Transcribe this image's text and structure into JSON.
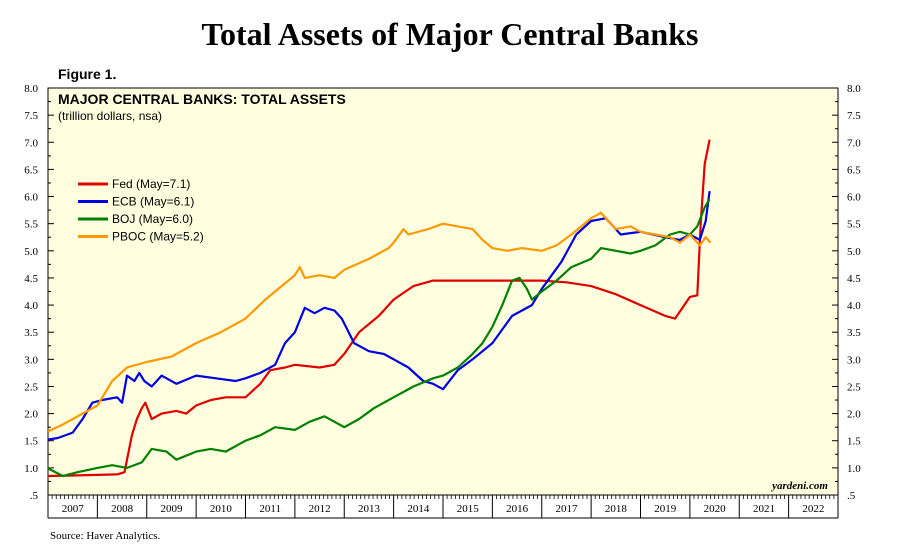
{
  "page": {
    "title": "Total Assets of Major Central Banks",
    "figure_label": "Figure 1.",
    "source": "Source: Haver Analytics."
  },
  "chart_data": {
    "type": "line",
    "title": "MAJOR CENTRAL BANKS: TOTAL ASSETS",
    "subtitle": "(trillion dollars, nsa)",
    "watermark": "yardeni.com",
    "xlabel": "",
    "ylabel": "",
    "xlim": [
      2007,
      2023
    ],
    "ylim": [
      0.5,
      8.0
    ],
    "y_ticks": [
      0.5,
      1.0,
      1.5,
      2.0,
      2.5,
      3.0,
      3.5,
      4.0,
      4.5,
      5.0,
      5.5,
      6.0,
      6.5,
      7.0,
      7.5,
      8.0
    ],
    "y_tick_labels": [
      ".5",
      "1.0",
      "1.5",
      "2.0",
      "2.5",
      "3.0",
      "3.5",
      "4.0",
      "4.5",
      "5.0",
      "5.5",
      "6.0",
      "6.5",
      "7.0",
      "7.5",
      "8.0"
    ],
    "x_tick_labels": [
      "2007",
      "2008",
      "2009",
      "2010",
      "2011",
      "2012",
      "2013",
      "2014",
      "2015",
      "2016",
      "2017",
      "2018",
      "2019",
      "2020",
      "2021",
      "2022"
    ],
    "plot_background": "#ffffe0",
    "grid": false,
    "legend_position": "left, upper-middle",
    "series": [
      {
        "name": "Fed (May=7.1)",
        "color": "#e00000",
        "points": [
          [
            2007.0,
            0.85
          ],
          [
            2007.5,
            0.86
          ],
          [
            2008.0,
            0.87
          ],
          [
            2008.4,
            0.88
          ],
          [
            2008.55,
            0.92
          ],
          [
            2008.7,
            1.6
          ],
          [
            2008.8,
            1.9
          ],
          [
            2008.9,
            2.1
          ],
          [
            2008.97,
            2.2
          ],
          [
            2009.1,
            1.9
          ],
          [
            2009.3,
            2.0
          ],
          [
            2009.6,
            2.05
          ],
          [
            2009.8,
            2.0
          ],
          [
            2010.0,
            2.15
          ],
          [
            2010.3,
            2.25
          ],
          [
            2010.6,
            2.3
          ],
          [
            2011.0,
            2.3
          ],
          [
            2011.3,
            2.55
          ],
          [
            2011.5,
            2.8
          ],
          [
            2011.8,
            2.85
          ],
          [
            2012.0,
            2.9
          ],
          [
            2012.5,
            2.85
          ],
          [
            2012.8,
            2.9
          ],
          [
            2013.0,
            3.1
          ],
          [
            2013.3,
            3.5
          ],
          [
            2013.7,
            3.8
          ],
          [
            2014.0,
            4.1
          ],
          [
            2014.4,
            4.35
          ],
          [
            2014.8,
            4.45
          ],
          [
            2015.5,
            4.45
          ],
          [
            2016.0,
            4.45
          ],
          [
            2017.0,
            4.45
          ],
          [
            2017.5,
            4.42
          ],
          [
            2018.0,
            4.35
          ],
          [
            2018.5,
            4.2
          ],
          [
            2019.0,
            4.0
          ],
          [
            2019.5,
            3.8
          ],
          [
            2019.7,
            3.75
          ],
          [
            2019.85,
            3.95
          ],
          [
            2020.0,
            4.15
          ],
          [
            2020.15,
            4.18
          ],
          [
            2020.22,
            5.5
          ],
          [
            2020.3,
            6.6
          ],
          [
            2020.4,
            7.05
          ]
        ]
      },
      {
        "name": "ECB (May=6.1)",
        "color": "#0000e0",
        "points": [
          [
            2007.0,
            1.52
          ],
          [
            2007.2,
            1.55
          ],
          [
            2007.5,
            1.65
          ],
          [
            2007.7,
            1.9
          ],
          [
            2007.9,
            2.2
          ],
          [
            2008.1,
            2.25
          ],
          [
            2008.4,
            2.3
          ],
          [
            2008.5,
            2.2
          ],
          [
            2008.6,
            2.7
          ],
          [
            2008.75,
            2.6
          ],
          [
            2008.85,
            2.75
          ],
          [
            2008.95,
            2.6
          ],
          [
            2009.1,
            2.5
          ],
          [
            2009.3,
            2.7
          ],
          [
            2009.6,
            2.55
          ],
          [
            2010.0,
            2.7
          ],
          [
            2010.4,
            2.65
          ],
          [
            2010.8,
            2.6
          ],
          [
            2011.0,
            2.65
          ],
          [
            2011.3,
            2.75
          ],
          [
            2011.6,
            2.9
          ],
          [
            2011.8,
            3.3
          ],
          [
            2012.0,
            3.5
          ],
          [
            2012.2,
            3.95
          ],
          [
            2012.4,
            3.85
          ],
          [
            2012.6,
            3.95
          ],
          [
            2012.8,
            3.9
          ],
          [
            2012.95,
            3.75
          ],
          [
            2013.2,
            3.3
          ],
          [
            2013.5,
            3.15
          ],
          [
            2013.8,
            3.1
          ],
          [
            2014.0,
            3.0
          ],
          [
            2014.3,
            2.85
          ],
          [
            2014.6,
            2.6
          ],
          [
            2014.8,
            2.55
          ],
          [
            2015.0,
            2.45
          ],
          [
            2015.3,
            2.8
          ],
          [
            2015.6,
            3.0
          ],
          [
            2016.0,
            3.3
          ],
          [
            2016.4,
            3.8
          ],
          [
            2016.8,
            4.0
          ],
          [
            2017.0,
            4.3
          ],
          [
            2017.4,
            4.8
          ],
          [
            2017.7,
            5.3
          ],
          [
            2018.0,
            5.55
          ],
          [
            2018.3,
            5.6
          ],
          [
            2018.6,
            5.3
          ],
          [
            2019.0,
            5.35
          ],
          [
            2019.5,
            5.25
          ],
          [
            2019.8,
            5.2
          ],
          [
            2020.0,
            5.3
          ],
          [
            2020.2,
            5.2
          ],
          [
            2020.32,
            5.55
          ],
          [
            2020.4,
            6.1
          ]
        ]
      },
      {
        "name": "BOJ (May=6.0)",
        "color": "#008000",
        "points": [
          [
            2007.0,
            0.99
          ],
          [
            2007.3,
            0.85
          ],
          [
            2007.6,
            0.92
          ],
          [
            2008.0,
            1.0
          ],
          [
            2008.3,
            1.05
          ],
          [
            2008.6,
            1.0
          ],
          [
            2008.9,
            1.1
          ],
          [
            2009.1,
            1.35
          ],
          [
            2009.4,
            1.3
          ],
          [
            2009.6,
            1.15
          ],
          [
            2010.0,
            1.3
          ],
          [
            2010.3,
            1.35
          ],
          [
            2010.6,
            1.3
          ],
          [
            2011.0,
            1.5
          ],
          [
            2011.3,
            1.6
          ],
          [
            2011.6,
            1.75
          ],
          [
            2012.0,
            1.7
          ],
          [
            2012.3,
            1.85
          ],
          [
            2012.6,
            1.95
          ],
          [
            2013.0,
            1.75
          ],
          [
            2013.3,
            1.9
          ],
          [
            2013.6,
            2.1
          ],
          [
            2014.0,
            2.3
          ],
          [
            2014.4,
            2.5
          ],
          [
            2014.8,
            2.65
          ],
          [
            2015.0,
            2.7
          ],
          [
            2015.3,
            2.85
          ],
          [
            2015.6,
            3.1
          ],
          [
            2015.8,
            3.3
          ],
          [
            2016.0,
            3.6
          ],
          [
            2016.2,
            4.0
          ],
          [
            2016.4,
            4.45
          ],
          [
            2016.55,
            4.5
          ],
          [
            2016.7,
            4.3
          ],
          [
            2016.8,
            4.1
          ],
          [
            2017.0,
            4.25
          ],
          [
            2017.3,
            4.45
          ],
          [
            2017.6,
            4.7
          ],
          [
            2018.0,
            4.85
          ],
          [
            2018.2,
            5.05
          ],
          [
            2018.5,
            5.0
          ],
          [
            2018.8,
            4.95
          ],
          [
            2019.0,
            5.0
          ],
          [
            2019.3,
            5.1
          ],
          [
            2019.6,
            5.3
          ],
          [
            2019.8,
            5.35
          ],
          [
            2020.0,
            5.3
          ],
          [
            2020.15,
            5.45
          ],
          [
            2020.3,
            5.8
          ],
          [
            2020.4,
            5.95
          ]
        ]
      },
      {
        "name": "PBOC (May=5.2)",
        "color": "#ff9900",
        "points": [
          [
            2007.0,
            1.67
          ],
          [
            2007.3,
            1.8
          ],
          [
            2007.6,
            1.95
          ],
          [
            2008.0,
            2.15
          ],
          [
            2008.3,
            2.6
          ],
          [
            2008.6,
            2.85
          ],
          [
            2009.0,
            2.95
          ],
          [
            2009.5,
            3.05
          ],
          [
            2010.0,
            3.3
          ],
          [
            2010.5,
            3.5
          ],
          [
            2011.0,
            3.75
          ],
          [
            2011.4,
            4.1
          ],
          [
            2011.8,
            4.4
          ],
          [
            2012.0,
            4.55
          ],
          [
            2012.1,
            4.7
          ],
          [
            2012.2,
            4.5
          ],
          [
            2012.5,
            4.55
          ],
          [
            2012.8,
            4.5
          ],
          [
            2013.0,
            4.65
          ],
          [
            2013.5,
            4.85
          ],
          [
            2013.9,
            5.05
          ],
          [
            2014.0,
            5.15
          ],
          [
            2014.2,
            5.4
          ],
          [
            2014.3,
            5.3
          ],
          [
            2014.7,
            5.4
          ],
          [
            2015.0,
            5.5
          ],
          [
            2015.3,
            5.45
          ],
          [
            2015.6,
            5.4
          ],
          [
            2015.8,
            5.2
          ],
          [
            2016.0,
            5.05
          ],
          [
            2016.3,
            5.0
          ],
          [
            2016.6,
            5.05
          ],
          [
            2017.0,
            5.0
          ],
          [
            2017.3,
            5.1
          ],
          [
            2017.6,
            5.3
          ],
          [
            2018.0,
            5.6
          ],
          [
            2018.2,
            5.7
          ],
          [
            2018.5,
            5.4
          ],
          [
            2018.8,
            5.45
          ],
          [
            2019.0,
            5.35
          ],
          [
            2019.3,
            5.3
          ],
          [
            2019.6,
            5.25
          ],
          [
            2019.8,
            5.15
          ],
          [
            2020.0,
            5.3
          ],
          [
            2020.2,
            5.1
          ],
          [
            2020.32,
            5.25
          ],
          [
            2020.42,
            5.15
          ]
        ]
      }
    ]
  }
}
